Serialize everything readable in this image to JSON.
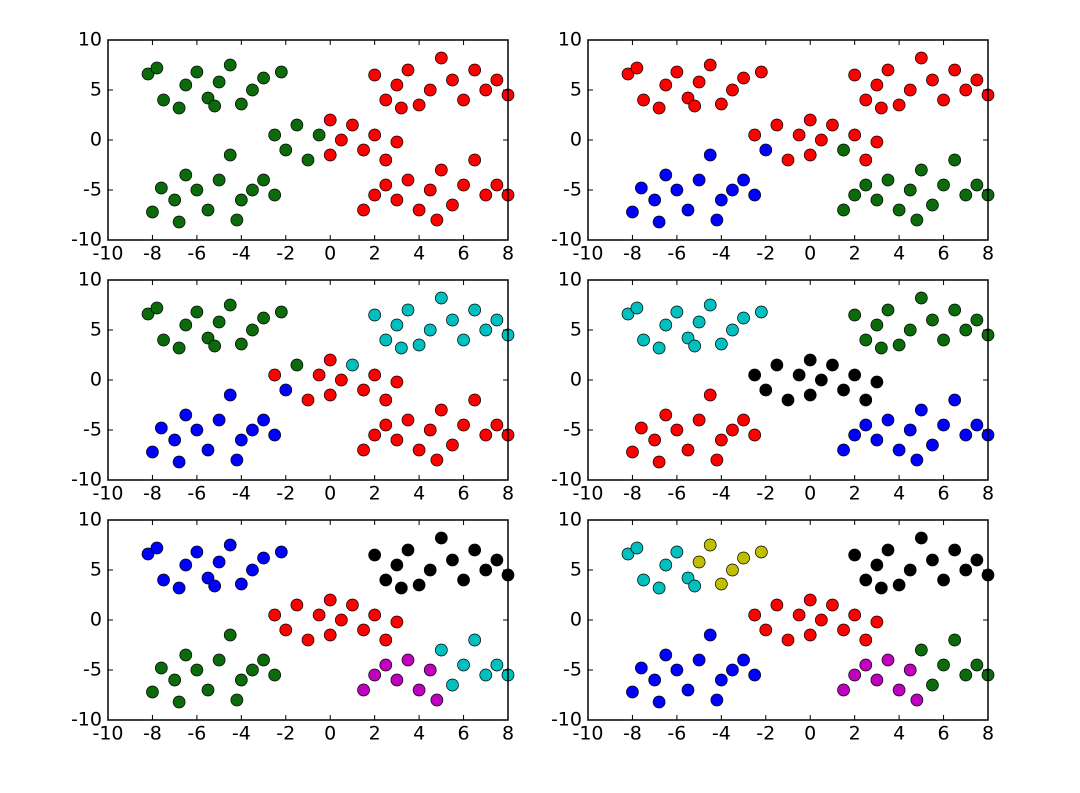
{
  "chart_data": [
    {
      "type": "scatter",
      "xlim": [
        -10,
        8
      ],
      "ylim": [
        -10,
        10
      ],
      "xticks": [
        -10,
        -8,
        -6,
        -4,
        -2,
        0,
        2,
        4,
        6,
        8
      ],
      "yticks": [
        -10,
        -5,
        0,
        5,
        10
      ],
      "series": [
        {
          "color": "#0b6b0b",
          "x": [
            -8.2,
            -7.8,
            -7.5,
            -6.8,
            -6.5,
            -6,
            -5.5,
            -5.2,
            -5,
            -4.5,
            -4,
            -3.5,
            -3,
            -2.2,
            -8,
            -7.6,
            -7,
            -6.8,
            -6.5,
            -6,
            -5.5,
            -5,
            -4.5,
            -4.2,
            -4,
            -3.5,
            -3,
            -2.5,
            -2.5,
            -2,
            -1.5,
            -1,
            -0.5
          ],
          "y": [
            6.6,
            7.2,
            4,
            3.2,
            5.5,
            6.8,
            4.2,
            3.4,
            5.8,
            7.5,
            3.6,
            5,
            6.2,
            6.8,
            -7.2,
            -4.8,
            -6,
            -8.2,
            -3.5,
            -5,
            -7,
            -4,
            -1.5,
            -8,
            -6,
            -5,
            -4,
            -5.5,
            0.5,
            -1,
            1.5,
            -2,
            0.5
          ]
        },
        {
          "color": "#ff0000",
          "x": [
            2,
            2.5,
            3,
            3.2,
            3.5,
            4,
            4.5,
            5,
            5.5,
            6,
            6.5,
            7,
            7.5,
            8,
            1.5,
            2,
            2.5,
            3,
            3.5,
            4,
            4.5,
            4.8,
            5,
            5.5,
            6,
            6.5,
            7,
            7.5,
            8,
            0,
            0,
            0.5,
            1,
            1.5,
            2,
            2.5,
            3
          ],
          "y": [
            6.5,
            4,
            5.5,
            3.2,
            7,
            3.5,
            5,
            8.2,
            6,
            4,
            7,
            5,
            6,
            4.5,
            -7,
            -5.5,
            -4.5,
            -6,
            -4,
            -7,
            -5,
            -8,
            -3,
            -6.5,
            -4.5,
            -2,
            -5.5,
            -4.5,
            -5.5,
            2,
            -1.5,
            0,
            1.5,
            -1,
            0.5,
            -2,
            -0.2
          ]
        }
      ]
    },
    {
      "type": "scatter",
      "xlim": [
        -10,
        8
      ],
      "ylim": [
        -10,
        10
      ],
      "xticks": [
        -10,
        -8,
        -6,
        -4,
        -2,
        0,
        2,
        4,
        6,
        8
      ],
      "yticks": [
        -10,
        -5,
        0,
        5,
        10
      ],
      "series": [
        {
          "color": "#ff0000",
          "x": [
            -8.2,
            -7.8,
            -7.5,
            -6.8,
            -6.5,
            -6,
            -5.5,
            -5.2,
            -5,
            -4.5,
            -4,
            -3.5,
            -3,
            -2.2,
            2,
            2.5,
            3,
            3.2,
            3.5,
            4,
            4.5,
            5,
            5.5,
            6,
            6.5,
            7,
            7.5,
            8,
            -2.5,
            -1.5,
            -1,
            -0.5,
            0,
            0,
            0.5,
            1,
            2,
            2.5,
            3
          ],
          "y": [
            6.6,
            7.2,
            4,
            3.2,
            5.5,
            6.8,
            4.2,
            3.4,
            5.8,
            7.5,
            3.6,
            5,
            6.2,
            6.8,
            6.5,
            4,
            5.5,
            3.2,
            7,
            3.5,
            5,
            8.2,
            6,
            4,
            7,
            5,
            6,
            4.5,
            0.5,
            1.5,
            -2,
            0.5,
            2,
            -1.5,
            0,
            1.5,
            0.5,
            -2,
            -0.2
          ]
        },
        {
          "color": "#0000ff",
          "x": [
            -8,
            -7.6,
            -7,
            -6.8,
            -6.5,
            -6,
            -5.5,
            -5,
            -4.5,
            -4.2,
            -4,
            -3.5,
            -3,
            -2.5,
            -2
          ],
          "y": [
            -7.2,
            -4.8,
            -6,
            -8.2,
            -3.5,
            -5,
            -7,
            -4,
            -1.5,
            -8,
            -6,
            -5,
            -4,
            -5.5,
            -1
          ]
        },
        {
          "color": "#0b6b0b",
          "x": [
            1.5,
            2,
            2.5,
            3,
            3.5,
            4,
            4.5,
            4.8,
            5,
            5.5,
            6,
            6.5,
            7,
            7.5,
            8,
            1.5
          ],
          "y": [
            -7,
            -5.5,
            -4.5,
            -6,
            -4,
            -7,
            -5,
            -8,
            -3,
            -6.5,
            -4.5,
            -2,
            -5.5,
            -4.5,
            -5.5,
            -1
          ]
        }
      ]
    },
    {
      "type": "scatter",
      "xlim": [
        -10,
        8
      ],
      "ylim": [
        -10,
        10
      ],
      "xticks": [
        -10,
        -8,
        -6,
        -4,
        -2,
        0,
        2,
        4,
        6,
        8
      ],
      "yticks": [
        -10,
        -5,
        0,
        5,
        10
      ],
      "series": [
        {
          "color": "#0b6b0b",
          "x": [
            -8.2,
            -7.8,
            -7.5,
            -6.8,
            -6.5,
            -6,
            -5.5,
            -5.2,
            -5,
            -4.5,
            -4,
            -3.5,
            -3,
            -2.2,
            -1.5
          ],
          "y": [
            6.6,
            7.2,
            4,
            3.2,
            5.5,
            6.8,
            4.2,
            3.4,
            5.8,
            7.5,
            3.6,
            5,
            6.2,
            6.8,
            1.5
          ]
        },
        {
          "color": "#00bfbf",
          "x": [
            2,
            2.5,
            3,
            3.2,
            3.5,
            4,
            4.5,
            5,
            5.5,
            6,
            6.5,
            7,
            7.5,
            8,
            1
          ],
          "y": [
            6.5,
            4,
            5.5,
            3.2,
            7,
            3.5,
            5,
            8.2,
            6,
            4,
            7,
            5,
            6,
            4.5,
            1.5
          ]
        },
        {
          "color": "#0000ff",
          "x": [
            -8,
            -7.6,
            -7,
            -6.8,
            -6.5,
            -6,
            -5.5,
            -5,
            -4.5,
            -4.2,
            -4,
            -3.5,
            -3,
            -2.5,
            -2
          ],
          "y": [
            -7.2,
            -4.8,
            -6,
            -8.2,
            -3.5,
            -5,
            -7,
            -4,
            -1.5,
            -8,
            -6,
            -5,
            -4,
            -5.5,
            -1
          ]
        },
        {
          "color": "#ff0000",
          "x": [
            -2.5,
            -1,
            -0.5,
            0,
            0,
            0.5,
            1.5,
            2,
            2.5,
            3,
            1.5,
            2,
            2.5,
            3,
            3.5,
            4,
            4.5,
            4.8,
            5,
            5.5,
            6,
            6.5,
            7,
            7.5,
            8
          ],
          "y": [
            0.5,
            -2,
            0.5,
            2,
            -1.5,
            0,
            -1,
            0.5,
            -2,
            -0.2,
            -7,
            -5.5,
            -4.5,
            -6,
            -4,
            -7,
            -5,
            -8,
            -3,
            -6.5,
            -4.5,
            -2,
            -5.5,
            -4.5,
            -5.5
          ]
        }
      ]
    },
    {
      "type": "scatter",
      "xlim": [
        -10,
        8
      ],
      "ylim": [
        -10,
        10
      ],
      "xticks": [
        -10,
        -8,
        -6,
        -4,
        -2,
        0,
        2,
        4,
        6,
        8
      ],
      "yticks": [
        -10,
        -5,
        0,
        5,
        10
      ],
      "series": [
        {
          "color": "#00bfbf",
          "x": [
            -8.2,
            -7.8,
            -7.5,
            -6.8,
            -6.5,
            -6,
            -5.5,
            -5.2,
            -5,
            -4.5,
            -4,
            -3.5,
            -3,
            -2.2
          ],
          "y": [
            6.6,
            7.2,
            4,
            3.2,
            5.5,
            6.8,
            4.2,
            3.4,
            5.8,
            7.5,
            3.6,
            5,
            6.2,
            6.8
          ]
        },
        {
          "color": "#0b6b0b",
          "x": [
            2,
            2.5,
            3,
            3.2,
            3.5,
            4,
            4.5,
            5,
            5.5,
            6,
            6.5,
            7,
            7.5,
            8
          ],
          "y": [
            6.5,
            4,
            5.5,
            3.2,
            7,
            3.5,
            5,
            8.2,
            6,
            4,
            7,
            5,
            6,
            4.5
          ]
        },
        {
          "color": "#000000",
          "x": [
            -2.5,
            -2,
            -1.5,
            -1,
            -0.5,
            0,
            0,
            0.5,
            1,
            1.5,
            2,
            2.5,
            3
          ],
          "y": [
            0.5,
            -1,
            1.5,
            -2,
            0.5,
            2,
            -1.5,
            0,
            1.5,
            -1,
            0.5,
            -2,
            -0.2
          ]
        },
        {
          "color": "#ff0000",
          "x": [
            -8,
            -7.6,
            -7,
            -6.8,
            -6.5,
            -6,
            -5.5,
            -5,
            -4.5,
            -4.2,
            -4,
            -3.5,
            -3,
            -2.5
          ],
          "y": [
            -7.2,
            -4.8,
            -6,
            -8.2,
            -3.5,
            -5,
            -7,
            -4,
            -1.5,
            -8,
            -6,
            -5,
            -4,
            -5.5
          ]
        },
        {
          "color": "#0000ff",
          "x": [
            1.5,
            2,
            2.5,
            3,
            3.5,
            4,
            4.5,
            4.8,
            5,
            5.5,
            6,
            6.5,
            7,
            7.5,
            8
          ],
          "y": [
            -7,
            -5.5,
            -4.5,
            -6,
            -4,
            -7,
            -5,
            -8,
            -3,
            -6.5,
            -4.5,
            -2,
            -5.5,
            -4.5,
            -5.5
          ]
        }
      ]
    },
    {
      "type": "scatter",
      "xlim": [
        -10,
        8
      ],
      "ylim": [
        -10,
        10
      ],
      "xticks": [
        -10,
        -8,
        -6,
        -4,
        -2,
        0,
        2,
        4,
        6,
        8
      ],
      "yticks": [
        -10,
        -5,
        0,
        5,
        10
      ],
      "series": [
        {
          "color": "#0000ff",
          "x": [
            -8.2,
            -7.8,
            -7.5,
            -6.8,
            -6.5,
            -6,
            -5.5,
            -5.2,
            -5,
            -4.5,
            -4,
            -3.5,
            -3,
            -2.2
          ],
          "y": [
            6.6,
            7.2,
            4,
            3.2,
            5.5,
            6.8,
            4.2,
            3.4,
            5.8,
            7.5,
            3.6,
            5,
            6.2,
            6.8
          ]
        },
        {
          "color": "#000000",
          "x": [
            2,
            2.5,
            3,
            3.2,
            3.5,
            4,
            4.5,
            5,
            5.5,
            6,
            6.5,
            7,
            7.5,
            8
          ],
          "y": [
            6.5,
            4,
            5.5,
            3.2,
            7,
            3.5,
            5,
            8.2,
            6,
            4,
            7,
            5,
            6,
            4.5
          ]
        },
        {
          "color": "#ff0000",
          "x": [
            -2.5,
            -2,
            -1.5,
            -1,
            -0.5,
            0,
            0,
            0.5,
            1,
            1.5,
            2,
            2.5,
            3
          ],
          "y": [
            0.5,
            -1,
            1.5,
            -2,
            0.5,
            2,
            -1.5,
            0,
            1.5,
            -1,
            0.5,
            -2,
            -0.2
          ]
        },
        {
          "color": "#0b6b0b",
          "x": [
            -8,
            -7.6,
            -7,
            -6.8,
            -6.5,
            -6,
            -5.5,
            -5,
            -4.5,
            -4.2,
            -4,
            -3.5,
            -3,
            -2.5
          ],
          "y": [
            -7.2,
            -4.8,
            -6,
            -8.2,
            -3.5,
            -5,
            -7,
            -4,
            -1.5,
            -8,
            -6,
            -5,
            -4,
            -5.5
          ]
        },
        {
          "color": "#bf00bf",
          "x": [
            1.5,
            2,
            2.5,
            3,
            3.5,
            4,
            4.5,
            4.8
          ],
          "y": [
            -7,
            -5.5,
            -4.5,
            -6,
            -4,
            -7,
            -5,
            -8
          ]
        },
        {
          "color": "#00bfbf",
          "x": [
            5,
            5.5,
            6,
            6.5,
            7,
            7.5,
            8
          ],
          "y": [
            -3,
            -6.5,
            -4.5,
            -2,
            -5.5,
            -4.5,
            -5.5
          ]
        }
      ]
    },
    {
      "type": "scatter",
      "xlim": [
        -10,
        8
      ],
      "ylim": [
        -10,
        10
      ],
      "xticks": [
        -10,
        -8,
        -6,
        -4,
        -2,
        0,
        2,
        4,
        6,
        8
      ],
      "yticks": [
        -10,
        -5,
        0,
        5,
        10
      ],
      "series": [
        {
          "color": "#00bfbf",
          "x": [
            -8.2,
            -7.8,
            -7.5,
            -6.8,
            -6.5,
            -6,
            -5.5,
            -5.2
          ],
          "y": [
            6.6,
            7.2,
            4,
            3.2,
            5.5,
            6.8,
            4.2,
            3.4
          ]
        },
        {
          "color": "#bfbf00",
          "x": [
            -5,
            -4.5,
            -4,
            -3.5,
            -3,
            -2.2
          ],
          "y": [
            5.8,
            7.5,
            3.6,
            5,
            6.2,
            6.8
          ]
        },
        {
          "color": "#000000",
          "x": [
            2,
            2.5,
            3,
            3.2,
            3.5,
            4,
            4.5,
            5,
            5.5,
            6,
            6.5,
            7,
            7.5,
            8
          ],
          "y": [
            6.5,
            4,
            5.5,
            3.2,
            7,
            3.5,
            5,
            8.2,
            6,
            4,
            7,
            5,
            6,
            4.5
          ]
        },
        {
          "color": "#ff0000",
          "x": [
            -2.5,
            -2,
            -1.5,
            -1,
            -0.5,
            0,
            0,
            0.5,
            1,
            1.5,
            2,
            2.5,
            3
          ],
          "y": [
            0.5,
            -1,
            1.5,
            -2,
            0.5,
            2,
            -1.5,
            0,
            1.5,
            -1,
            0.5,
            -2,
            -0.2
          ]
        },
        {
          "color": "#0000ff",
          "x": [
            -8,
            -7.6,
            -7,
            -6.8,
            -6.5,
            -6,
            -5.5,
            -5,
            -4.5,
            -4.2,
            -4,
            -3.5,
            -3,
            -2.5
          ],
          "y": [
            -7.2,
            -4.8,
            -6,
            -8.2,
            -3.5,
            -5,
            -7,
            -4,
            -1.5,
            -8,
            -6,
            -5,
            -4,
            -5.5
          ]
        },
        {
          "color": "#bf00bf",
          "x": [
            1.5,
            2,
            2.5,
            3,
            3.5,
            4,
            4.5,
            4.8
          ],
          "y": [
            -7,
            -5.5,
            -4.5,
            -6,
            -4,
            -7,
            -5,
            -8
          ]
        },
        {
          "color": "#0b6b0b",
          "x": [
            5,
            5.5,
            6,
            6.5,
            7,
            7.5,
            8
          ],
          "y": [
            -3,
            -6.5,
            -4.5,
            -2,
            -5.5,
            -4.5,
            -5.5
          ]
        }
      ]
    }
  ]
}
